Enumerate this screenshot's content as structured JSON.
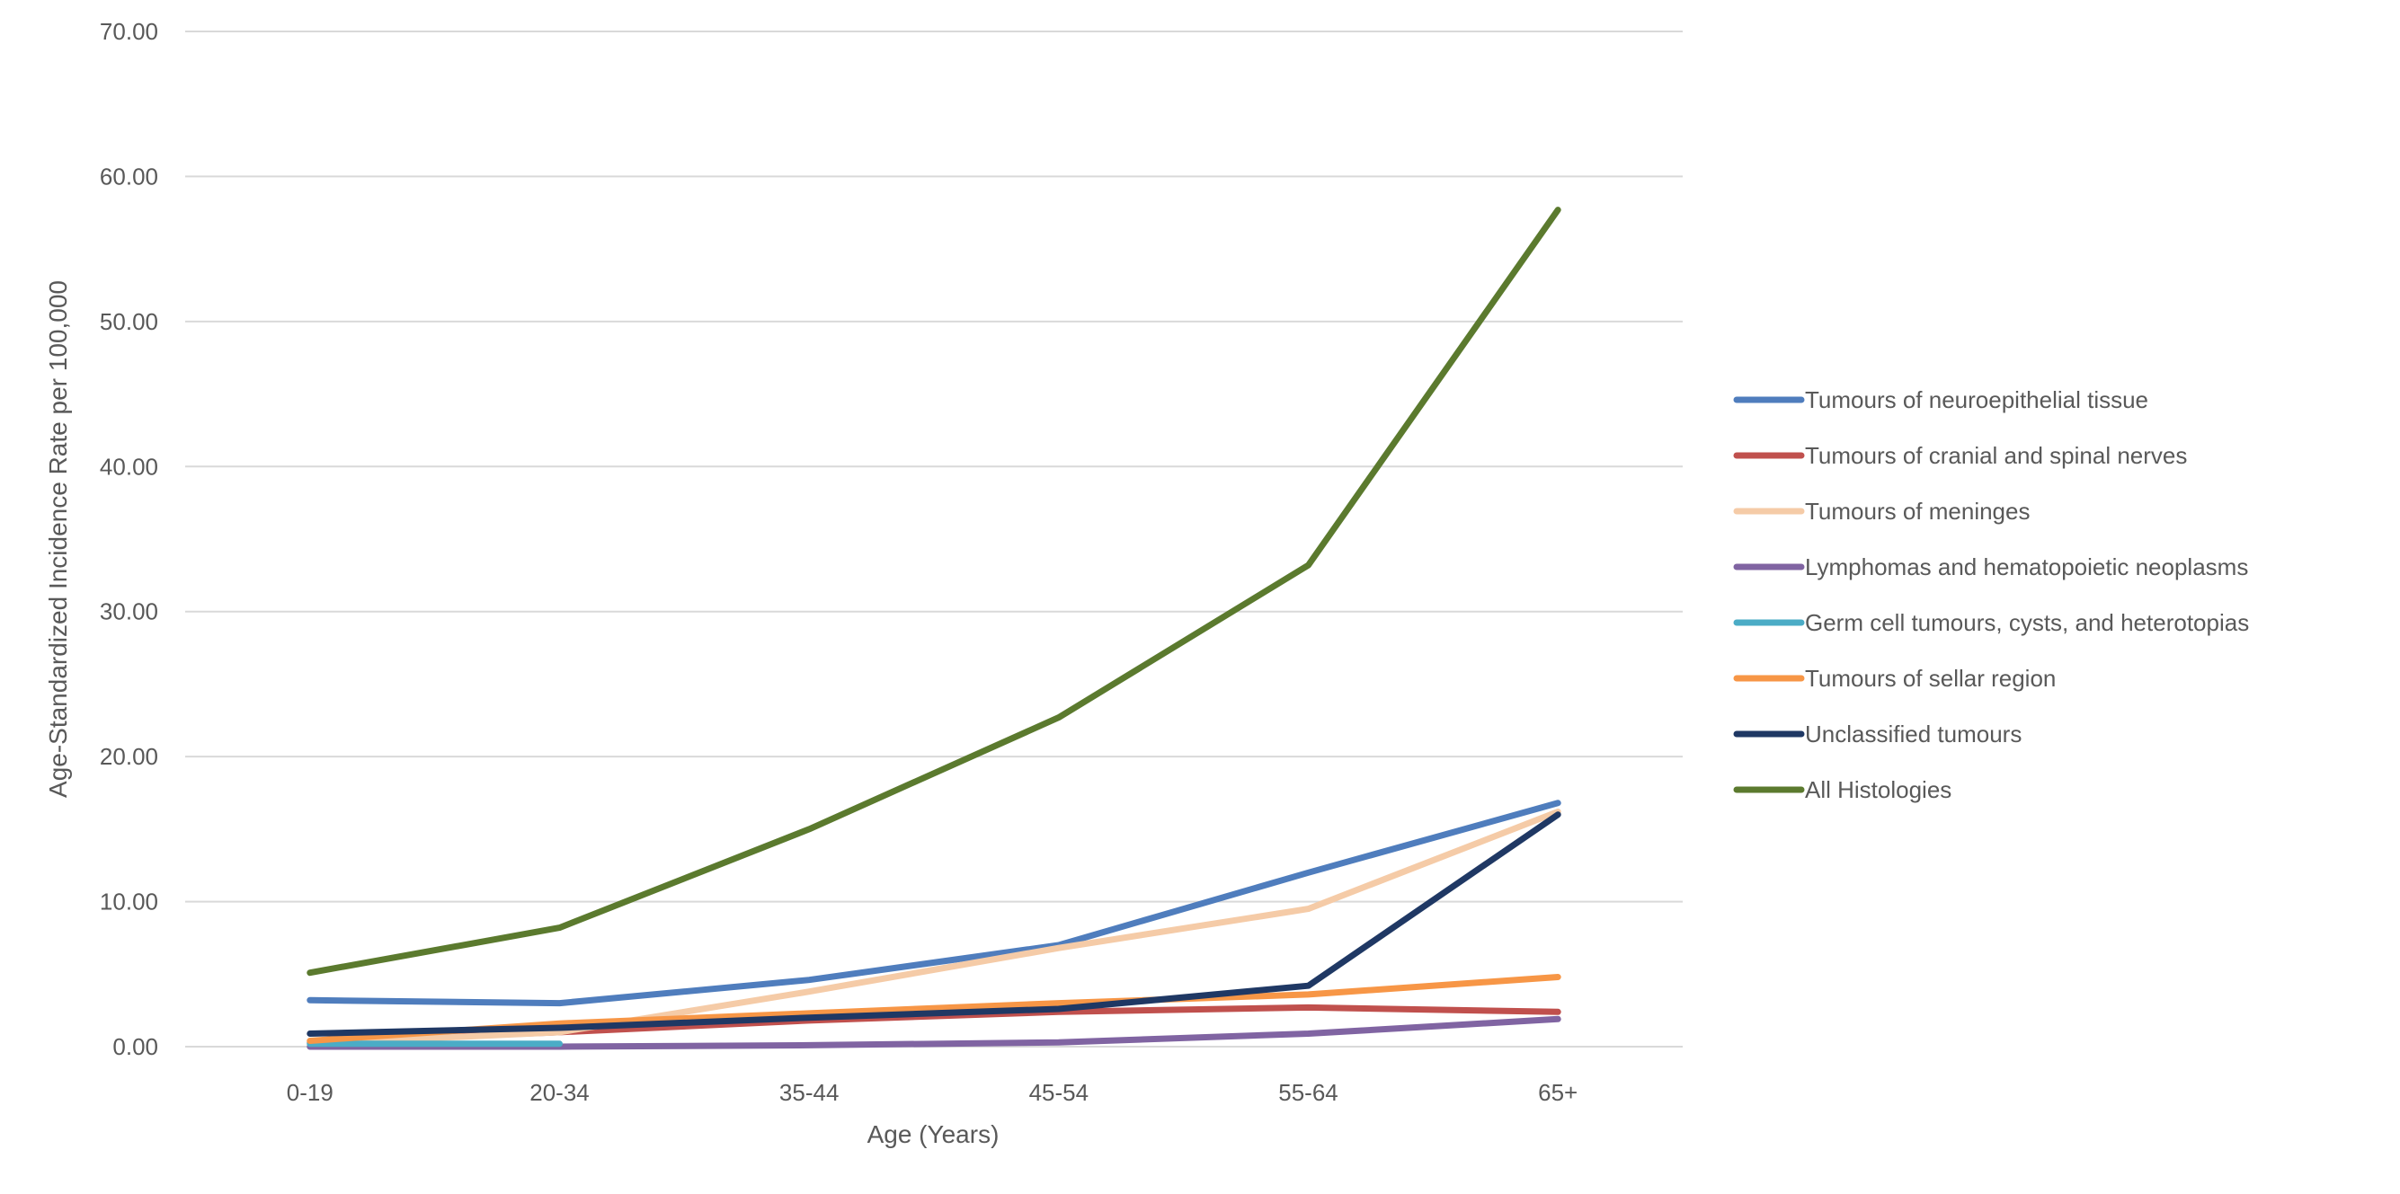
{
  "chart_data": {
    "type": "line",
    "title": "",
    "xlabel": "Age (Years)",
    "ylabel": "Age-Standardized Incidence Rate per 100,000",
    "categories": [
      "0-19",
      "20-34",
      "35-44",
      "45-54",
      "55-64",
      "65+"
    ],
    "ylim": [
      0,
      70
    ],
    "yticks": [
      "0.00",
      "10.00",
      "20.00",
      "30.00",
      "40.00",
      "50.00",
      "60.00",
      "70.00"
    ],
    "grid": true,
    "legend_position": "right",
    "series": [
      {
        "name": "Tumours of neuroepithelial tissue",
        "color": "#4f7dbd",
        "values": [
          3.2,
          3.0,
          4.6,
          7.0,
          12.0,
          16.8
        ]
      },
      {
        "name": "Tumours of cranial and spinal nerves",
        "color": "#c0504d",
        "values": [
          0.3,
          1.0,
          1.8,
          2.4,
          2.7,
          2.4
        ]
      },
      {
        "name": "Tumours of meninges",
        "color": "#f5cba7",
        "values": [
          0.2,
          1.0,
          3.8,
          6.8,
          9.5,
          16.2
        ]
      },
      {
        "name": "Lymphomas and hematopoietic neoplasms",
        "color": "#8064a2",
        "values": [
          0.0,
          0.0,
          0.1,
          0.3,
          0.9,
          1.9
        ]
      },
      {
        "name": "Germ cell tumours, cysts, and heterotopias",
        "color": "#4bacc6",
        "values": [
          0.2,
          0.2,
          null,
          null,
          null,
          null
        ]
      },
      {
        "name": "Tumours of sellar region",
        "color": "#f79646",
        "values": [
          0.4,
          1.6,
          2.3,
          3.0,
          3.6,
          4.8
        ]
      },
      {
        "name": "Unclassified tumours",
        "color": "#1f3864",
        "values": [
          0.9,
          1.3,
          2.0,
          2.6,
          4.2,
          16.0
        ]
      },
      {
        "name": "All Histologies",
        "color": "#5b7a2e",
        "values": [
          5.1,
          8.2,
          15.0,
          22.7,
          33.2,
          57.7
        ]
      }
    ]
  }
}
